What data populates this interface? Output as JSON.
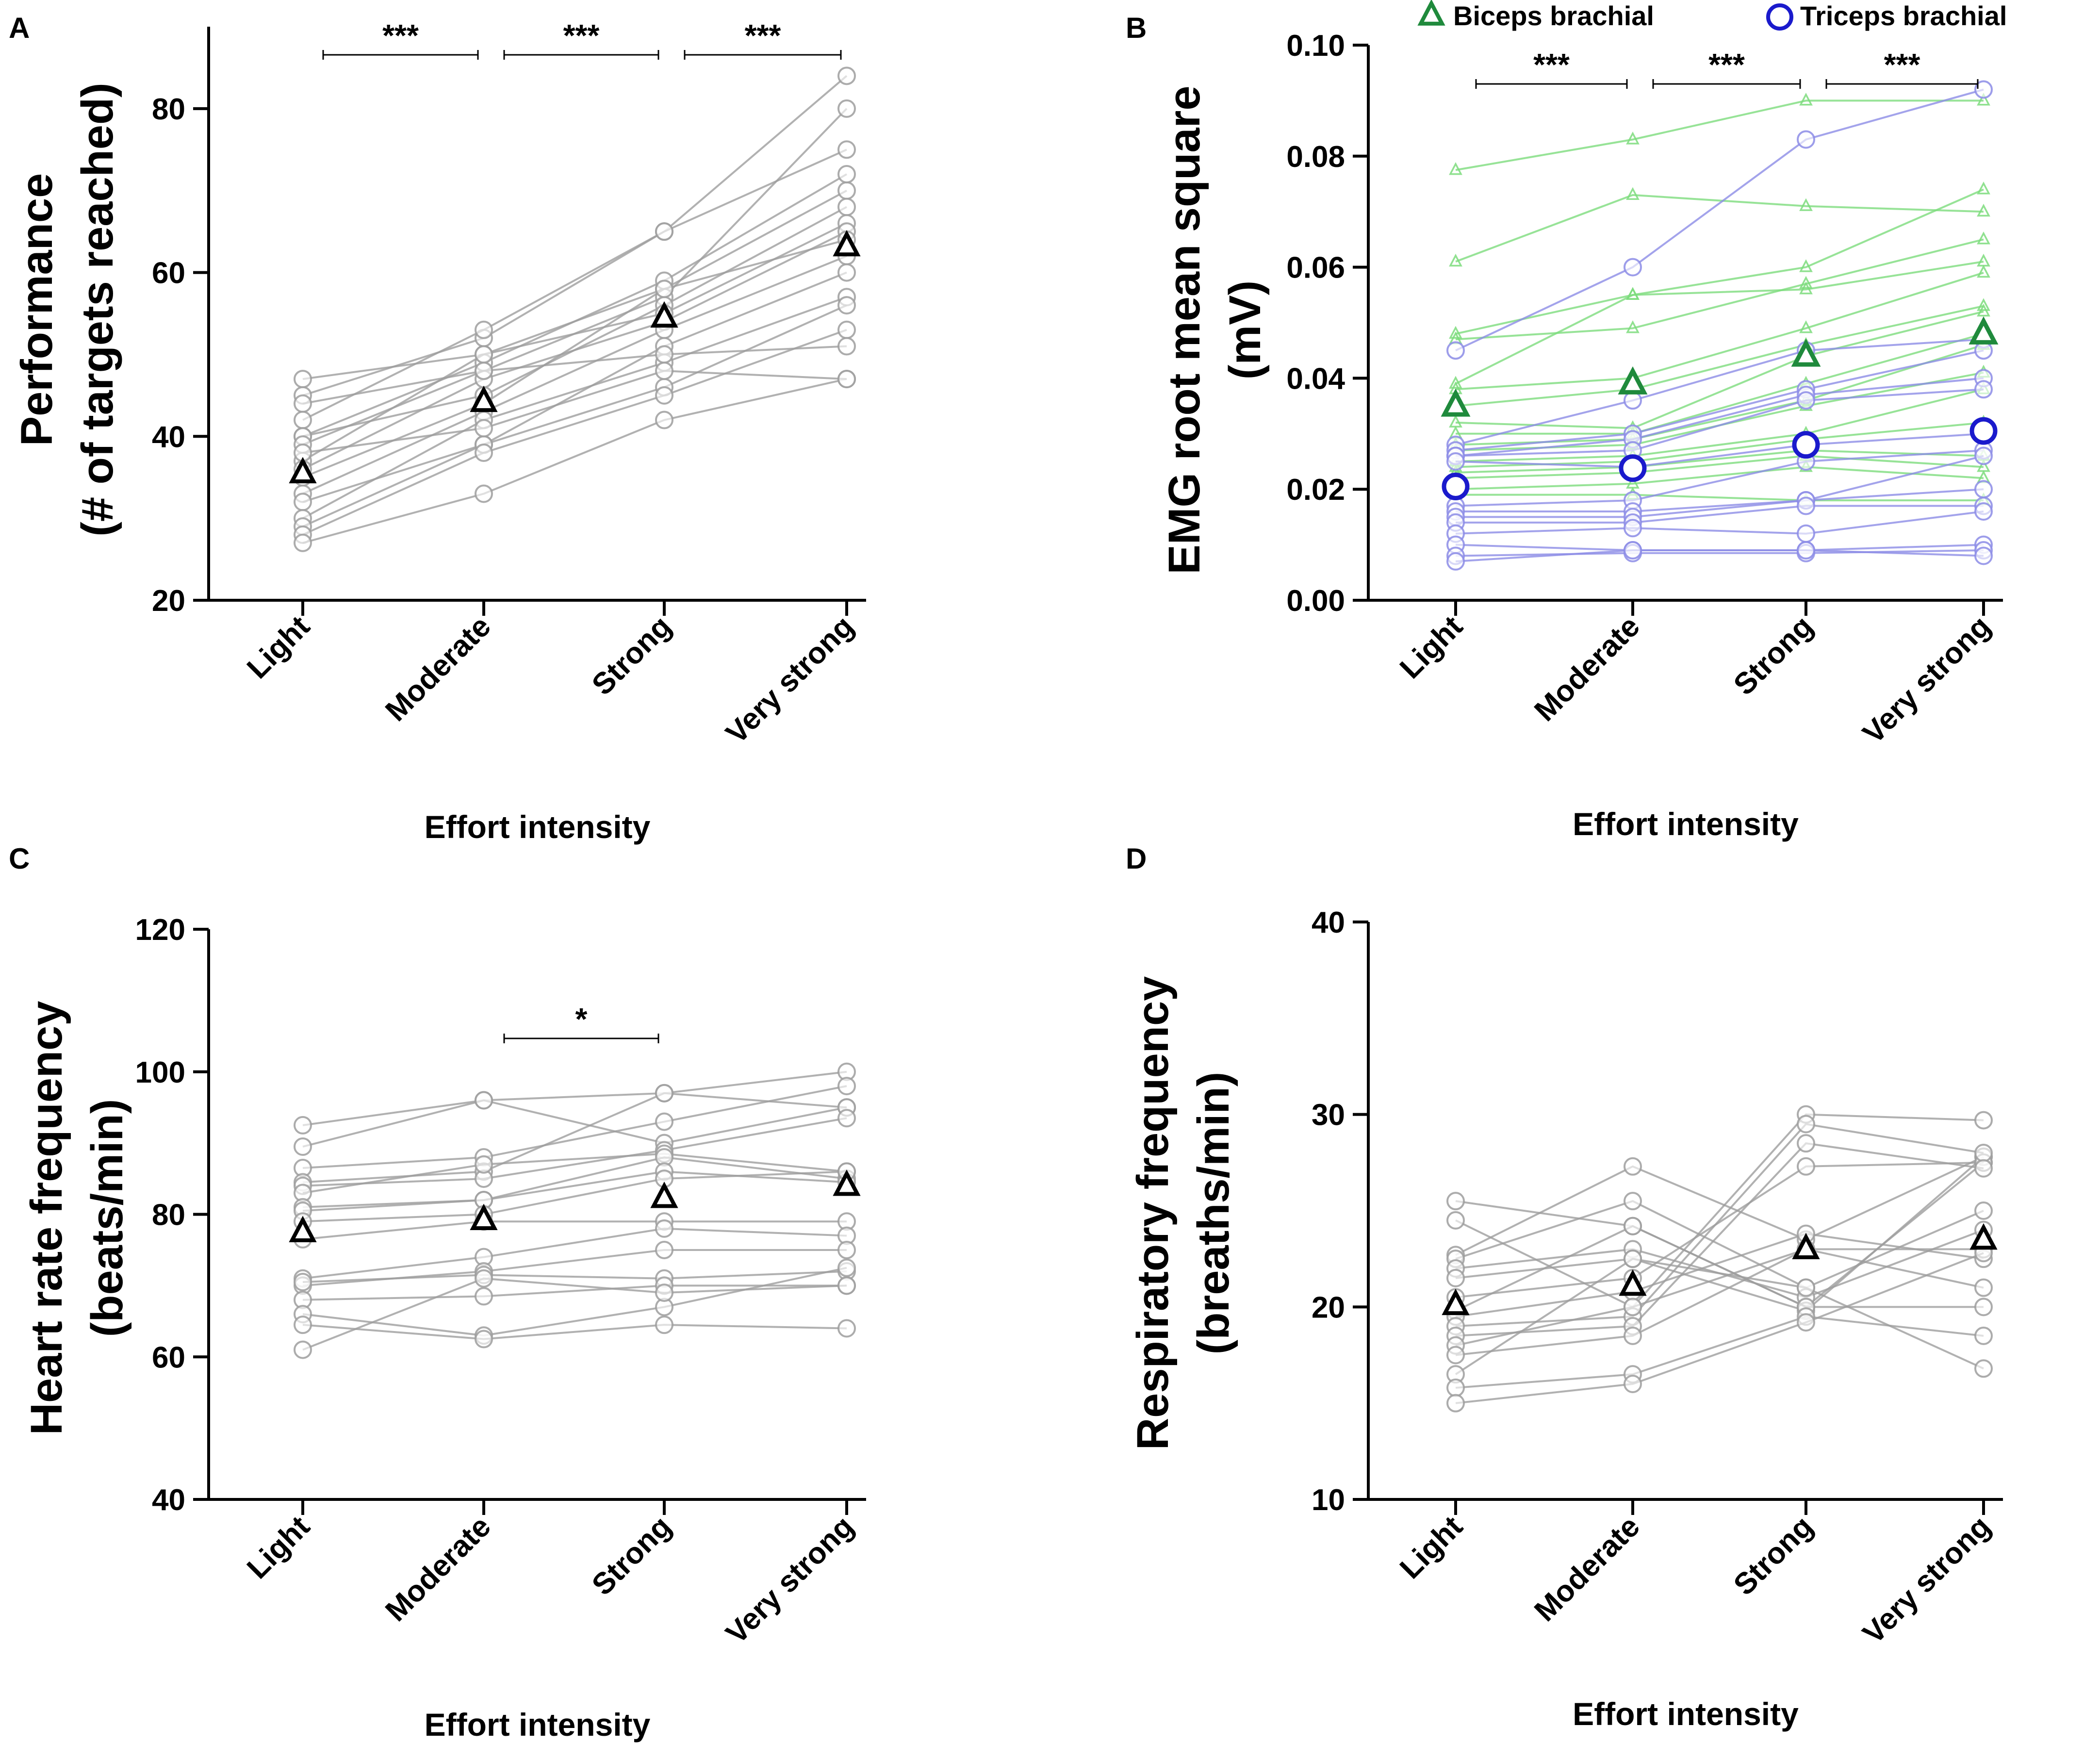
{
  "colors": {
    "gray": "#9e9e9e",
    "green_light": "#7ddc7d",
    "green_dark": "#1f8a3c",
    "blue_light": "#8c8ce6",
    "blue_dark": "#1a1acc",
    "black": "#000000"
  },
  "chart_data": [
    {
      "type": "line",
      "panel_label": "A",
      "ylabel_lines": [
        "Performance",
        "(# of targets reached)"
      ],
      "xlabel": "Effort intensity",
      "categories": [
        "Light",
        "Moderate",
        "Strong",
        "Very strong"
      ],
      "ylim": [
        20,
        90
      ],
      "yticks": [
        20,
        40,
        60,
        80
      ],
      "tick_labels": [
        "20",
        "40",
        "60",
        "80"
      ],
      "series": [
        {
          "values": [
            47,
            50,
            58,
            70
          ]
        },
        {
          "values": [
            45,
            52,
            65,
            84
          ]
        },
        {
          "values": [
            44,
            48,
            57,
            80
          ]
        },
        {
          "values": [
            42,
            53,
            65,
            75
          ]
        },
        {
          "values": [
            40,
            49,
            59,
            72
          ]
        },
        {
          "values": [
            40,
            45,
            56,
            68
          ]
        },
        {
          "values": [
            37,
            50,
            55,
            66
          ]
        },
        {
          "values": [
            36,
            47,
            54,
            65
          ]
        },
        {
          "values": [
            35,
            44,
            58,
            64
          ]
        },
        {
          "values": [
            33,
            43,
            53,
            62
          ]
        },
        {
          "values": [
            32,
            39,
            51,
            60
          ]
        },
        {
          "values": [
            30,
            42,
            49,
            57
          ]
        },
        {
          "values": [
            29,
            39,
            46,
            56
          ]
        },
        {
          "values": [
            28,
            38,
            45,
            53
          ]
        },
        {
          "values": [
            27,
            33,
            42,
            47
          ]
        },
        {
          "values": [
            39,
            48,
            50,
            51
          ]
        },
        {
          "values": [
            38,
            41,
            48,
            47
          ]
        }
      ],
      "means": [
        35.5,
        44.2,
        54.5,
        63.2
      ],
      "significance": [
        {
          "from": 0,
          "to": 1,
          "label": "***"
        },
        {
          "from": 1,
          "to": 2,
          "label": "***"
        },
        {
          "from": 2,
          "to": 3,
          "label": "***"
        }
      ]
    },
    {
      "type": "line",
      "panel_label": "B",
      "ylabel_lines": [
        "EMG root mean square",
        "(mV)"
      ],
      "xlabel": "Effort intensity",
      "categories": [
        "Light",
        "Moderate",
        "Strong",
        "Very strong"
      ],
      "ylim": [
        0,
        0.1
      ],
      "yticks": [
        0,
        0.02,
        0.04,
        0.06,
        0.08,
        0.1
      ],
      "tick_labels": [
        "0.00",
        "0.02",
        "0.04",
        "0.06",
        "0.08",
        "0.10"
      ],
      "legend": [
        {
          "label": "Biceps brachial",
          "marker": "triangle"
        },
        {
          "label": "Triceps brachial",
          "marker": "circle"
        }
      ],
      "biceps_series": [
        {
          "values": [
            0.0775,
            0.083,
            0.09,
            0.09
          ]
        },
        {
          "values": [
            0.061,
            0.073,
            0.071,
            0.07
          ]
        },
        {
          "values": [
            0.048,
            0.055,
            0.06,
            0.074
          ]
        },
        {
          "values": [
            0.047,
            0.049,
            0.057,
            0.065
          ]
        },
        {
          "values": [
            0.039,
            0.055,
            0.056,
            0.061
          ]
        },
        {
          "values": [
            0.038,
            0.04,
            0.049,
            0.059
          ]
        },
        {
          "values": [
            0.035,
            0.038,
            0.046,
            0.053
          ]
        },
        {
          "values": [
            0.032,
            0.031,
            0.044,
            0.052
          ]
        },
        {
          "values": [
            0.03,
            0.03,
            0.039,
            0.048
          ]
        },
        {
          "values": [
            0.028,
            0.029,
            0.036,
            0.046
          ]
        },
        {
          "values": [
            0.027,
            0.028,
            0.035,
            0.041
          ]
        },
        {
          "values": [
            0.025,
            0.026,
            0.03,
            0.038
          ]
        },
        {
          "values": [
            0.024,
            0.025,
            0.029,
            0.032
          ]
        },
        {
          "values": [
            0.023,
            0.024,
            0.027,
            0.026
          ]
        },
        {
          "values": [
            0.022,
            0.023,
            0.026,
            0.024
          ]
        },
        {
          "values": [
            0.02,
            0.021,
            0.024,
            0.022
          ]
        },
        {
          "values": [
            0.019,
            0.019,
            0.018,
            0.018
          ]
        }
      ],
      "triceps_series": [
        {
          "values": [
            0.045,
            0.06,
            0.083,
            0.092
          ]
        },
        {
          "values": [
            0.028,
            0.036,
            0.045,
            0.047
          ]
        },
        {
          "values": [
            0.027,
            0.03,
            0.038,
            0.045
          ]
        },
        {
          "values": [
            0.026,
            0.029,
            0.037,
            0.04
          ]
        },
        {
          "values": [
            0.026,
            0.027,
            0.036,
            0.038
          ]
        },
        {
          "values": [
            0.025,
            0.024,
            0.028,
            0.03
          ]
        },
        {
          "values": [
            0.017,
            0.018,
            0.025,
            0.027
          ]
        },
        {
          "values": [
            0.016,
            0.016,
            0.018,
            0.026
          ]
        },
        {
          "values": [
            0.015,
            0.015,
            0.018,
            0.02
          ]
        },
        {
          "values": [
            0.014,
            0.014,
            0.017,
            0.017
          ]
        },
        {
          "values": [
            0.012,
            0.013,
            0.012,
            0.016
          ]
        },
        {
          "values": [
            0.01,
            0.009,
            0.009,
            0.01
          ]
        },
        {
          "values": [
            0.008,
            0.0085,
            0.0085,
            0.009
          ]
        },
        {
          "values": [
            0.007,
            0.009,
            0.009,
            0.008
          ]
        }
      ],
      "biceps_means": [
        0.035,
        0.039,
        0.044,
        0.048
      ],
      "triceps_means": [
        0.0205,
        0.0238,
        0.028,
        0.0305
      ],
      "significance": [
        {
          "from": 0,
          "to": 1,
          "label": "***"
        },
        {
          "from": 1,
          "to": 2,
          "label": "***"
        },
        {
          "from": 2,
          "to": 3,
          "label": "***"
        }
      ]
    },
    {
      "type": "line",
      "panel_label": "C",
      "ylabel_lines": [
        "Heart rate frequency",
        "(beats/min)"
      ],
      "xlabel": "Effort intensity",
      "categories": [
        "Light",
        "Moderate",
        "Strong",
        "Very strong"
      ],
      "ylim": [
        40,
        120
      ],
      "yticks": [
        40,
        60,
        80,
        100,
        120
      ],
      "tick_labels": [
        "40",
        "60",
        "80",
        "100",
        "120"
      ],
      "series": [
        {
          "values": [
            92.5,
            96,
            97,
            100
          ]
        },
        {
          "values": [
            89.5,
            96,
            90,
            95
          ]
        },
        {
          "values": [
            86.5,
            88,
            93,
            98
          ]
        },
        {
          "values": [
            84.5,
            86,
            97,
            95
          ]
        },
        {
          "values": [
            84,
            85,
            89,
            93.5
          ]
        },
        {
          "values": [
            83,
            87,
            88.5,
            86
          ]
        },
        {
          "values": [
            81,
            82,
            88,
            85
          ]
        },
        {
          "values": [
            80.5,
            82,
            86,
            84.5
          ]
        },
        {
          "values": [
            79,
            80,
            85,
            86
          ]
        },
        {
          "values": [
            76.5,
            79,
            79,
            79
          ]
        },
        {
          "values": [
            71,
            74,
            78,
            77
          ]
        },
        {
          "values": [
            70,
            72,
            75,
            75
          ]
        },
        {
          "values": [
            70.5,
            71.5,
            71,
            72
          ]
        },
        {
          "values": [
            68,
            68.5,
            70,
            70
          ]
        },
        {
          "values": [
            66,
            63,
            67,
            72.5
          ]
        },
        {
          "values": [
            64.5,
            62.5,
            64.5,
            64
          ]
        },
        {
          "values": [
            61,
            71,
            69,
            70
          ]
        }
      ],
      "means": [
        77.5,
        79.2,
        82.3,
        84
      ],
      "significance": [
        {
          "from": 1,
          "to": 2,
          "label": "*"
        }
      ]
    },
    {
      "type": "line",
      "panel_label": "D",
      "ylabel_lines": [
        "Respiratory frequency",
        "(breaths/min)"
      ],
      "xlabel": "Effort intensity",
      "categories": [
        "Light",
        "Moderate",
        "Strong",
        "Very strong"
      ],
      "ylim": [
        10,
        40
      ],
      "yticks": [
        10,
        20,
        30,
        40
      ],
      "tick_labels": [
        "10",
        "20",
        "30",
        "40"
      ],
      "series": [
        {
          "values": [
            25.5,
            24.2,
            20,
            27.5
          ]
        },
        {
          "values": [
            24.5,
            20,
            30,
            29.7
          ]
        },
        {
          "values": [
            22.7,
            27.3,
            23.5,
            27.8
          ]
        },
        {
          "values": [
            22.5,
            25.5,
            21,
            25
          ]
        },
        {
          "values": [
            22,
            23,
            20.5,
            24
          ]
        },
        {
          "values": [
            21.5,
            22.5,
            19.8,
            27.8
          ]
        },
        {
          "values": [
            20.5,
            21.5,
            27.3,
            27.5
          ]
        },
        {
          "values": [
            19.8,
            24.2,
            20,
            20
          ]
        },
        {
          "values": [
            19.5,
            20.8,
            23.8,
            22.5
          ]
        },
        {
          "values": [
            19,
            19.5,
            29.5,
            28
          ]
        },
        {
          "values": [
            18.5,
            19,
            28.5,
            27.2
          ]
        },
        {
          "values": [
            18,
            20,
            23,
            23
          ]
        },
        {
          "values": [
            17.5,
            18.5,
            23,
            21
          ]
        },
        {
          "values": [
            16.5,
            22.5,
            21,
            16.8
          ]
        },
        {
          "values": [
            15.8,
            16.5,
            19.5,
            18.5
          ]
        },
        {
          "values": [
            15,
            16,
            19.2,
            22.8
          ]
        }
      ],
      "means": [
        20.1,
        21.1,
        23,
        23.5
      ],
      "significance": []
    }
  ]
}
